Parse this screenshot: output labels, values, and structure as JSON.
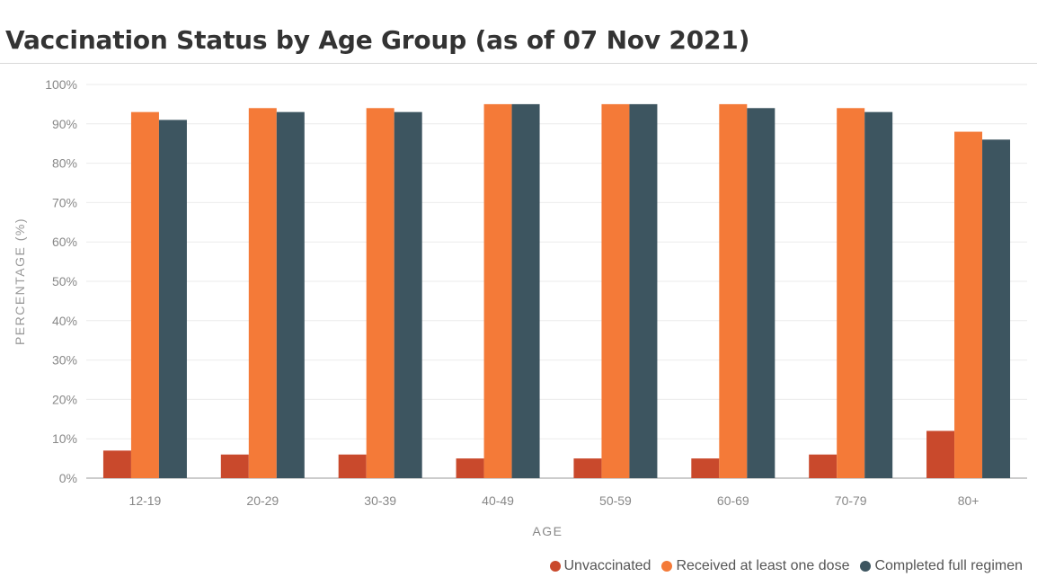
{
  "chart_data": {
    "type": "bar",
    "title": "Vaccination Status by Age Group (as of 07 Nov 2021)",
    "xlabel": "AGE",
    "ylabel": "PERCENTAGE (%)",
    "categories": [
      "12-19",
      "20-29",
      "30-39",
      "40-49",
      "50-59",
      "60-69",
      "70-79",
      "80+"
    ],
    "ylim": [
      0,
      100
    ],
    "yticks": [
      0,
      10,
      20,
      30,
      40,
      50,
      60,
      70,
      80,
      90,
      100
    ],
    "ytick_labels": [
      "0%",
      "10%",
      "20%",
      "30%",
      "40%",
      "50%",
      "60%",
      "70%",
      "80%",
      "90%",
      "100%"
    ],
    "series": [
      {
        "name": "Unvaccinated",
        "color": "#c9492c",
        "values": [
          7,
          6,
          6,
          5,
          5,
          5,
          6,
          12
        ]
      },
      {
        "name": "Received at least one dose",
        "color": "#f47a38",
        "values": [
          93,
          94,
          94,
          95,
          95,
          95,
          94,
          88
        ]
      },
      {
        "name": "Completed full regimen",
        "color": "#3d5560",
        "values": [
          91,
          93,
          93,
          95,
          95,
          94,
          93,
          86
        ]
      }
    ],
    "grid": true,
    "legend_position": "bottom-right"
  }
}
